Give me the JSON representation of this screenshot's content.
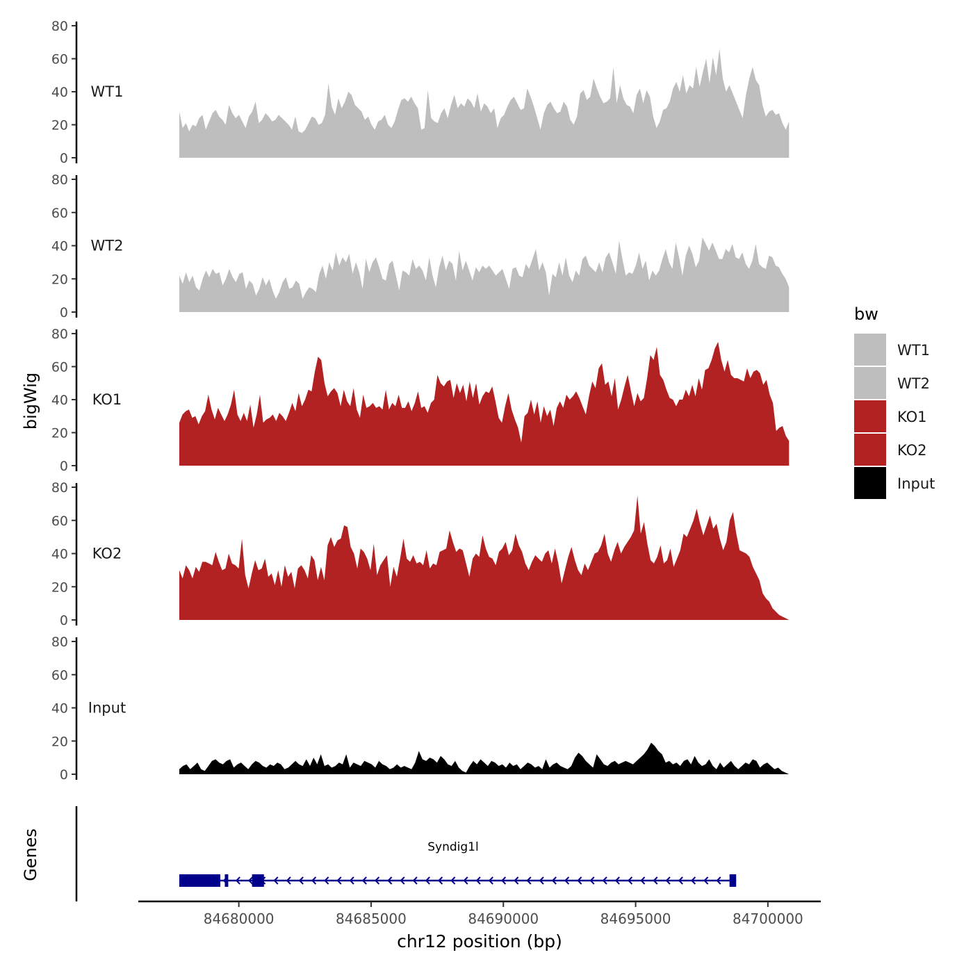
{
  "chart_data": {
    "type": "area",
    "ylabel": "bigWig",
    "xlabel": "chr12 position (bp)",
    "genes_label": "Genes",
    "xlim": [
      84676200,
      84702000
    ],
    "x_ticks": [
      84680000,
      84685000,
      84690000,
      84695000,
      84700000
    ],
    "x_tick_labels": [
      "84680000",
      "84685000",
      "84690000",
      "84695000",
      "84700000"
    ],
    "ylim": [
      0,
      80
    ],
    "y_ticks": [
      0,
      20,
      40,
      60,
      80
    ],
    "y_tick_labels": [
      "0",
      "20",
      "40",
      "60",
      "80"
    ],
    "signal_start": 84677750,
    "signal_end": 84700800,
    "legend": {
      "title": "bw",
      "position": "right",
      "entries": [
        {
          "label": "WT1",
          "color": "#bebebe"
        },
        {
          "label": "WT2",
          "color": "#bebebe"
        },
        {
          "label": "KO1",
          "color": "#b22222"
        },
        {
          "label": "KO2",
          "color": "#b22222"
        },
        {
          "label": "Input",
          "color": "#000000"
        }
      ]
    },
    "tracks": [
      {
        "name": "WT1",
        "color": "#bebebe",
        "values": [
          28,
          18,
          21,
          16,
          20,
          19,
          24,
          26,
          17,
          22,
          27,
          29,
          25,
          23,
          20,
          32,
          27,
          24,
          26,
          22,
          18,
          25,
          28,
          34,
          21,
          23,
          27,
          25,
          22,
          23,
          26,
          24,
          22,
          20,
          17,
          25,
          16,
          15,
          17,
          21,
          25,
          24,
          20,
          21,
          26,
          45,
          31,
          26,
          36,
          30,
          34,
          40,
          38,
          32,
          30,
          28,
          23,
          25,
          20,
          17,
          22,
          23,
          26,
          20,
          18,
          22,
          29,
          35,
          36,
          34,
          37,
          33,
          30,
          17,
          18,
          41,
          24,
          22,
          21,
          27,
          30,
          24,
          32,
          38,
          30,
          33,
          31,
          36,
          34,
          30,
          39,
          28,
          33,
          31,
          27,
          30,
          18,
          24,
          26,
          31,
          35,
          37,
          33,
          29,
          30,
          42,
          37,
          31,
          24,
          17,
          27,
          32,
          34,
          30,
          27,
          28,
          34,
          31,
          23,
          20,
          25,
          39,
          41,
          35,
          37,
          48,
          42,
          37,
          33,
          34,
          36,
          55,
          33,
          44,
          36,
          32,
          31,
          27,
          38,
          42,
          33,
          41,
          37,
          25,
          18,
          22,
          29,
          30,
          34,
          42,
          46,
          40,
          50,
          39,
          44,
          42,
          55,
          43,
          52,
          60,
          45,
          61,
          50,
          66,
          48,
          40,
          44,
          39,
          34,
          29,
          24,
          38,
          48,
          55,
          47,
          44,
          32,
          25,
          28,
          29,
          26,
          27,
          21,
          17,
          22
        ]
      },
      {
        "name": "WT2",
        "color": "#bebebe",
        "values": [
          22,
          17,
          24,
          18,
          22,
          15,
          13,
          20,
          25,
          21,
          26,
          23,
          24,
          16,
          20,
          26,
          21,
          18,
          23,
          24,
          14,
          19,
          17,
          10,
          14,
          21,
          16,
          20,
          13,
          8,
          12,
          18,
          21,
          14,
          15,
          19,
          17,
          8,
          12,
          15,
          14,
          12,
          23,
          28,
          20,
          30,
          25,
          36,
          28,
          33,
          30,
          35,
          23,
          30,
          24,
          14,
          32,
          24,
          30,
          33,
          27,
          20,
          19,
          29,
          31,
          22,
          13,
          25,
          24,
          22,
          32,
          26,
          28,
          25,
          19,
          33,
          22,
          15,
          27,
          34,
          25,
          31,
          29,
          19,
          37,
          25,
          31,
          25,
          19,
          27,
          24,
          28,
          26,
          28,
          25,
          22,
          24,
          26,
          20,
          14,
          26,
          27,
          22,
          21,
          29,
          26,
          32,
          38,
          25,
          30,
          24,
          10,
          23,
          21,
          30,
          22,
          33,
          22,
          18,
          25,
          22,
          32,
          34,
          28,
          26,
          24,
          30,
          24,
          33,
          36,
          30,
          23,
          43,
          32,
          22,
          24,
          23,
          28,
          36,
          26,
          31,
          19,
          25,
          22,
          25,
          32,
          38,
          30,
          26,
          42,
          33,
          22,
          34,
          40,
          35,
          27,
          31,
          45,
          41,
          37,
          42,
          37,
          32,
          32,
          38,
          36,
          41,
          33,
          32,
          36,
          29,
          26,
          31,
          41,
          29,
          27,
          26,
          34,
          33,
          28,
          27,
          23,
          20,
          15
        ]
      },
      {
        "name": "KO1",
        "color": "#b22222",
        "values": [
          26,
          31,
          33,
          34,
          29,
          30,
          25,
          30,
          33,
          43,
          34,
          28,
          35,
          31,
          27,
          31,
          37,
          46,
          31,
          27,
          32,
          27,
          37,
          23,
          31,
          43,
          26,
          28,
          29,
          31,
          27,
          32,
          30,
          27,
          32,
          38,
          33,
          44,
          36,
          40,
          46,
          45,
          57,
          66,
          64,
          50,
          42,
          45,
          47,
          44,
          36,
          46,
          39,
          36,
          47,
          34,
          29,
          43,
          35,
          36,
          38,
          35,
          36,
          34,
          46,
          34,
          38,
          36,
          43,
          35,
          35,
          39,
          33,
          38,
          45,
          35,
          36,
          32,
          38,
          40,
          55,
          50,
          48,
          51,
          52,
          41,
          50,
          44,
          49,
          39,
          51,
          41,
          50,
          37,
          42,
          45,
          44,
          48,
          39,
          29,
          26,
          36,
          44,
          34,
          28,
          23,
          14,
          30,
          32,
          40,
          31,
          39,
          26,
          36,
          30,
          34,
          24,
          35,
          39,
          35,
          43,
          40,
          42,
          45,
          41,
          36,
          31,
          42,
          51,
          47,
          59,
          62,
          49,
          51,
          42,
          53,
          34,
          40,
          48,
          55,
          45,
          36,
          44,
          39,
          41,
          53,
          67,
          64,
          72,
          55,
          52,
          46,
          41,
          40,
          36,
          40,
          40,
          46,
          42,
          49,
          42,
          53,
          46,
          58,
          59,
          64,
          71,
          75,
          64,
          57,
          64,
          55,
          53,
          53,
          52,
          51,
          59,
          53,
          57,
          58,
          56,
          49,
          52,
          43,
          38,
          21,
          23,
          24,
          18,
          15
        ]
      },
      {
        "name": "KO2",
        "color": "#b22222",
        "values": [
          30,
          25,
          33,
          30,
          25,
          32,
          29,
          35,
          35,
          34,
          33,
          41,
          35,
          30,
          31,
          40,
          34,
          33,
          31,
          49,
          27,
          19,
          28,
          36,
          30,
          31,
          37,
          26,
          28,
          21,
          30,
          20,
          33,
          26,
          29,
          19,
          31,
          33,
          30,
          25,
          39,
          36,
          24,
          32,
          24,
          45,
          50,
          44,
          48,
          49,
          57,
          56,
          44,
          40,
          31,
          43,
          41,
          37,
          30,
          46,
          27,
          33,
          36,
          39,
          20,
          32,
          26,
          37,
          49,
          37,
          35,
          39,
          34,
          35,
          33,
          42,
          31,
          34,
          33,
          41,
          42,
          43,
          54,
          47,
          41,
          43,
          42,
          34,
          26,
          37,
          40,
          38,
          51,
          43,
          38,
          37,
          33,
          41,
          43,
          47,
          39,
          42,
          52,
          45,
          41,
          34,
          30,
          35,
          39,
          37,
          35,
          40,
          42,
          34,
          43,
          34,
          22,
          30,
          38,
          44,
          36,
          30,
          27,
          34,
          30,
          35,
          40,
          41,
          45,
          52,
          40,
          35,
          42,
          47,
          40,
          44,
          47,
          50,
          54,
          75,
          52,
          59,
          46,
          36,
          34,
          38,
          45,
          34,
          36,
          43,
          32,
          37,
          42,
          52,
          50,
          55,
          60,
          67,
          58,
          51,
          57,
          63,
          55,
          58,
          49,
          42,
          47,
          60,
          65,
          52,
          42,
          41,
          40,
          38,
          32,
          28,
          24,
          16,
          13,
          11,
          7,
          5,
          3,
          2,
          1,
          0
        ]
      },
      {
        "name": "Input",
        "color": "#000000",
        "values": [
          3,
          5,
          6,
          3,
          5,
          7,
          3,
          2,
          5,
          8,
          9,
          7,
          6,
          8,
          9,
          4,
          6,
          7,
          5,
          3,
          6,
          8,
          7,
          5,
          4,
          6,
          5,
          7,
          6,
          3,
          4,
          6,
          8,
          6,
          5,
          9,
          5,
          10,
          6,
          12,
          5,
          6,
          4,
          5,
          7,
          6,
          12,
          4,
          7,
          6,
          5,
          8,
          7,
          6,
          4,
          8,
          6,
          5,
          3,
          4,
          6,
          4,
          5,
          4,
          3,
          7,
          14,
          9,
          8,
          10,
          9,
          7,
          11,
          9,
          6,
          5,
          8,
          4,
          2,
          1,
          5,
          8,
          6,
          9,
          7,
          5,
          8,
          7,
          5,
          6,
          4,
          7,
          5,
          6,
          3,
          5,
          7,
          6,
          4,
          5,
          3,
          9,
          4,
          6,
          7,
          5,
          4,
          3,
          5,
          10,
          13,
          11,
          8,
          6,
          4,
          12,
          9,
          6,
          5,
          7,
          8,
          6,
          7,
          8,
          7,
          6,
          8,
          10,
          12,
          15,
          19,
          17,
          14,
          12,
          7,
          8,
          6,
          7,
          5,
          8,
          9,
          6,
          11,
          7,
          5,
          6,
          9,
          5,
          3,
          7,
          4,
          6,
          8,
          5,
          3,
          5,
          7,
          6,
          9,
          8,
          4,
          6,
          7,
          5,
          3,
          4,
          2,
          1,
          0
        ]
      }
    ],
    "gene": {
      "name": "Syndig1l",
      "color": "#00008b",
      "start": 84677750,
      "end": 84698800,
      "strand": "-",
      "exons": [
        [
          84677750,
          84679300
        ],
        [
          84679470,
          84679600
        ],
        [
          84680500,
          84680950
        ],
        [
          84698550,
          84698800
        ]
      ]
    }
  }
}
